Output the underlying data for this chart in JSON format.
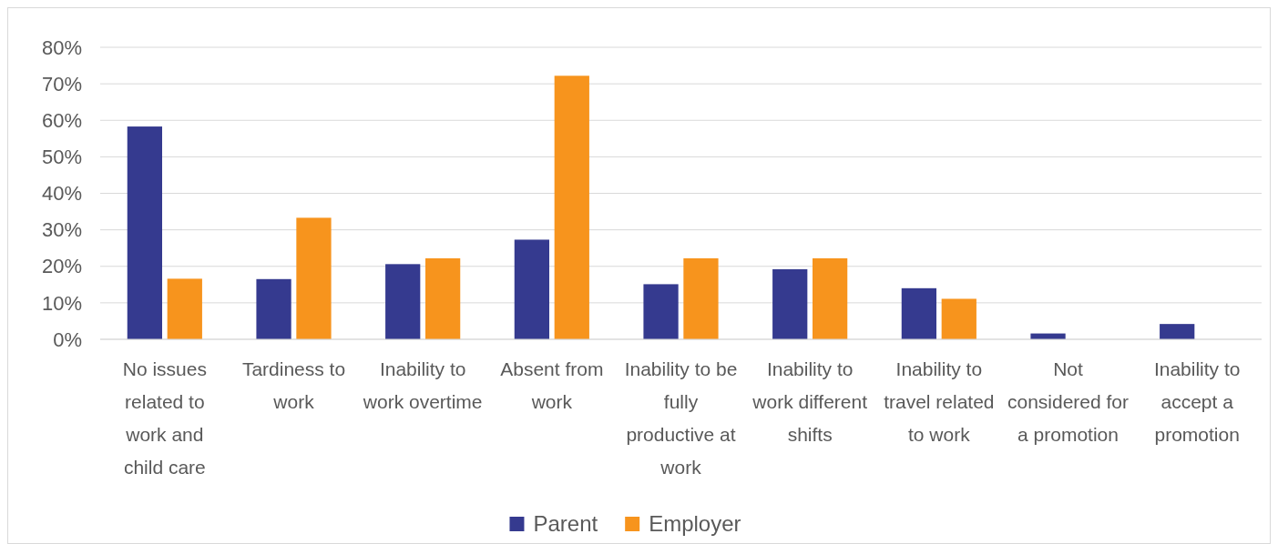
{
  "chart_data": {
    "type": "bar",
    "categories": [
      "No issues related to work and child care",
      "Tardiness to work",
      "Inability to work overtime",
      "Absent from work",
      "Inability to be fully productive at work",
      "Inability to work different shifts",
      "Inability to travel related to work",
      "Not considered for a promotion",
      "Inability to accept a promotion"
    ],
    "series": [
      {
        "name": "Parent",
        "color": "#353a8f",
        "values": [
          58.3,
          16.5,
          20.6,
          27.3,
          15.1,
          19.2,
          14,
          1.6,
          4.2
        ]
      },
      {
        "name": "Employer",
        "color": "#f7941d",
        "values": [
          16.6,
          33.3,
          22.2,
          72.2,
          22.2,
          22.2,
          11.1,
          0,
          0
        ]
      }
    ],
    "ylim": [
      0,
      80
    ],
    "yticks": [
      {
        "value": 0,
        "label": "0%"
      },
      {
        "value": 10,
        "label": "10%"
      },
      {
        "value": 20,
        "label": "20%"
      },
      {
        "value": 30,
        "label": "30%"
      },
      {
        "value": 40,
        "label": "40%"
      },
      {
        "value": 50,
        "label": "50%"
      },
      {
        "value": 60,
        "label": "60%"
      },
      {
        "value": 70,
        "label": "70%"
      },
      {
        "value": 80,
        "label": "80%"
      }
    ],
    "grid": "y",
    "legend": "bottom"
  }
}
